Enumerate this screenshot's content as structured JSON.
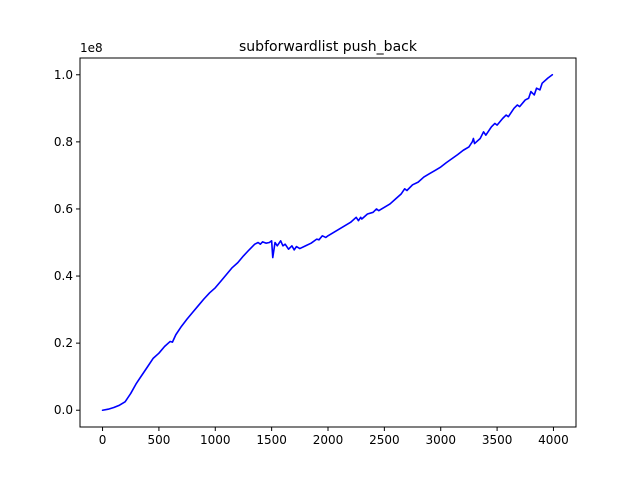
{
  "chart_data": {
    "type": "line",
    "title": "subforwardlist push_back",
    "xlabel": "",
    "ylabel": "",
    "y_offset_label": "1e8",
    "xlim": [
      -200,
      4200
    ],
    "ylim": [
      -0.05,
      1.05
    ],
    "x_ticks": [
      0,
      500,
      1000,
      1500,
      2000,
      2500,
      3000,
      3500,
      4000
    ],
    "x_tick_labels": [
      "0",
      "500",
      "1000",
      "1500",
      "2000",
      "2500",
      "3000",
      "3500",
      "4000"
    ],
    "y_ticks": [
      0.0,
      0.2,
      0.4,
      0.6,
      0.8,
      1.0
    ],
    "y_tick_labels": [
      "0.0",
      "0.2",
      "0.4",
      "0.6",
      "0.8",
      "1.0"
    ],
    "grid": false,
    "series": [
      {
        "color": "#0000ff",
        "x": [
          0,
          50,
          100,
          150,
          200,
          250,
          300,
          350,
          400,
          450,
          500,
          550,
          600,
          620,
          650,
          700,
          750,
          800,
          850,
          900,
          950,
          1000,
          1050,
          1100,
          1150,
          1200,
          1250,
          1300,
          1350,
          1380,
          1400,
          1420,
          1450,
          1480,
          1500,
          1510,
          1530,
          1550,
          1580,
          1600,
          1620,
          1650,
          1680,
          1700,
          1720,
          1750,
          1800,
          1850,
          1900,
          1920,
          1950,
          1980,
          2000,
          2050,
          2100,
          2150,
          2200,
          2250,
          2270,
          2290,
          2300,
          2350,
          2400,
          2430,
          2450,
          2500,
          2550,
          2600,
          2650,
          2680,
          2700,
          2750,
          2800,
          2850,
          2900,
          2950,
          3000,
          3050,
          3100,
          3150,
          3200,
          3250,
          3280,
          3290,
          3300,
          3350,
          3380,
          3400,
          3450,
          3480,
          3500,
          3550,
          3580,
          3600,
          3650,
          3680,
          3700,
          3750,
          3780,
          3800,
          3830,
          3850,
          3880,
          3900,
          3950,
          3990
        ],
        "values": [
          0.0,
          0.003,
          0.008,
          0.015,
          0.025,
          0.05,
          0.08,
          0.105,
          0.13,
          0.155,
          0.17,
          0.19,
          0.205,
          0.203,
          0.225,
          0.25,
          0.272,
          0.292,
          0.312,
          0.332,
          0.35,
          0.365,
          0.385,
          0.405,
          0.425,
          0.44,
          0.46,
          0.478,
          0.495,
          0.5,
          0.495,
          0.502,
          0.498,
          0.5,
          0.505,
          0.455,
          0.5,
          0.49,
          0.505,
          0.49,
          0.495,
          0.48,
          0.49,
          0.478,
          0.488,
          0.482,
          0.49,
          0.498,
          0.51,
          0.508,
          0.52,
          0.515,
          0.52,
          0.53,
          0.54,
          0.55,
          0.56,
          0.575,
          0.565,
          0.575,
          0.57,
          0.585,
          0.59,
          0.6,
          0.595,
          0.605,
          0.615,
          0.63,
          0.645,
          0.66,
          0.655,
          0.672,
          0.68,
          0.695,
          0.705,
          0.715,
          0.725,
          0.738,
          0.75,
          0.762,
          0.775,
          0.785,
          0.8,
          0.81,
          0.795,
          0.81,
          0.83,
          0.82,
          0.845,
          0.855,
          0.85,
          0.87,
          0.88,
          0.875,
          0.9,
          0.91,
          0.905,
          0.925,
          0.93,
          0.95,
          0.94,
          0.96,
          0.955,
          0.975,
          0.99,
          1.0
        ]
      }
    ]
  }
}
